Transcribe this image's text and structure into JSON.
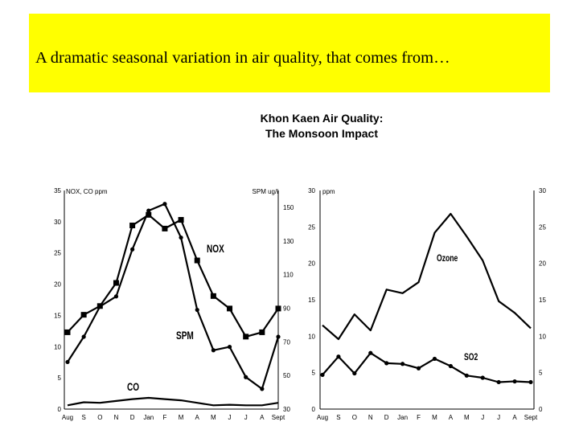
{
  "slide": {
    "banner_text": "A dramatic seasonal variation in air quality, that comes from…",
    "colors": {
      "banner": "#ffff00",
      "ink": "#000000"
    }
  },
  "figure": {
    "title_line1": "Khon Kaen Air Quality:",
    "title_line2": "The Monsoon Impact"
  },
  "chart_data": [
    {
      "type": "line",
      "categories": [
        "Aug",
        "S",
        "O",
        "N",
        "D",
        "Jan",
        "F",
        "M",
        "A",
        "M",
        "J",
        "J",
        "A",
        "Sept"
      ],
      "left_unit_label": "NOX, CO ppm",
      "right_unit_label": "SPM ug/l",
      "ylim_left": [
        0,
        35
      ],
      "yticks_left": [
        "0",
        "5",
        "10",
        "15",
        "20",
        "25",
        "30",
        "35"
      ],
      "ylim_right": [
        30,
        160
      ],
      "yticks_right": [
        "30",
        "50",
        "70",
        "90",
        "110",
        "130",
        "150"
      ],
      "series": [
        {
          "name": "NOX",
          "axis": "left",
          "marker": "square",
          "values": [
            12.3,
            15.1,
            16.5,
            20.2,
            29.4,
            31.1,
            28.9,
            30.3,
            23.8,
            18.1,
            16.1,
            11.6,
            12.3,
            16.1
          ]
        },
        {
          "name": "SPM",
          "axis": "right",
          "marker": "circle",
          "values": [
            58,
            73,
            91,
            97,
            125,
            148,
            152,
            132,
            89,
            65,
            67,
            49,
            42,
            73
          ]
        },
        {
          "name": "CO",
          "axis": "left",
          "marker": "none",
          "values": [
            0.6,
            1.1,
            1.0,
            1.3,
            1.6,
            1.8,
            1.6,
            1.4,
            1.0,
            0.6,
            0.7,
            0.6,
            0.6,
            1.0
          ]
        }
      ]
    },
    {
      "type": "line",
      "categories": [
        "Aug",
        "S",
        "O",
        "N",
        "D",
        "Jan",
        "F",
        "M",
        "A",
        "M",
        "J",
        "J",
        "A",
        "Sept"
      ],
      "left_unit_label": "ppm",
      "ylim": [
        0,
        30
      ],
      "yticks": [
        "0",
        "5",
        "10",
        "15",
        "20",
        "25",
        "30"
      ],
      "series": [
        {
          "name": "Ozone",
          "marker": "none",
          "values": [
            11.5,
            9.6,
            13.0,
            10.8,
            16.4,
            15.9,
            17.4,
            24.2,
            26.8,
            23.7,
            20.4,
            14.8,
            13.2,
            11.1
          ]
        },
        {
          "name": "SO2",
          "marker": "circle",
          "values": [
            4.7,
            7.2,
            4.9,
            7.7,
            6.3,
            6.2,
            5.6,
            6.9,
            5.9,
            4.6,
            4.3,
            3.7,
            3.8,
            3.7
          ]
        }
      ]
    }
  ]
}
